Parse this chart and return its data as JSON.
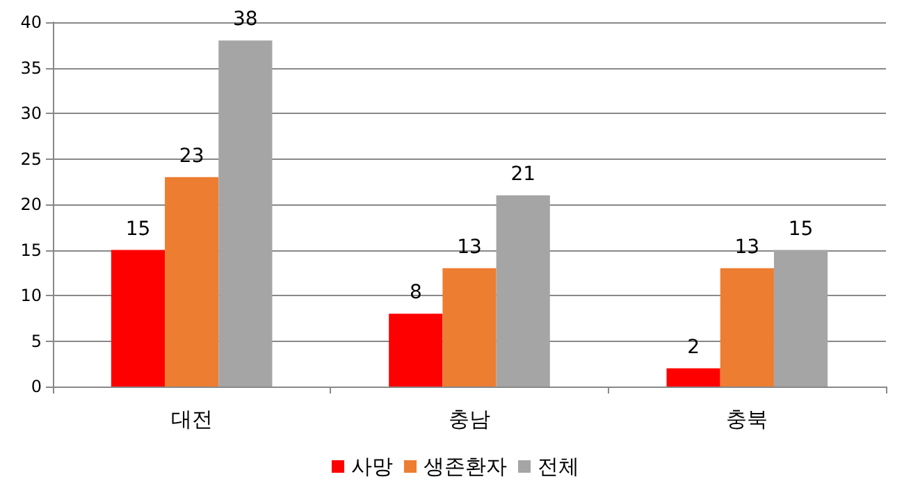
{
  "chart_data": {
    "type": "bar",
    "categories": [
      "대전",
      "충남",
      "충북"
    ],
    "series": [
      {
        "name": "사망",
        "color": "#ff0000",
        "values": [
          15,
          8,
          2
        ]
      },
      {
        "name": "생존환자",
        "color": "#ed7d31",
        "values": [
          23,
          13,
          13
        ]
      },
      {
        "name": "전체",
        "color": "#a5a5a5",
        "values": [
          38,
          21,
          15
        ]
      }
    ],
    "ylim": [
      0,
      40
    ],
    "yticks": [
      0,
      5,
      10,
      15,
      20,
      25,
      30,
      35,
      40
    ],
    "grid": "y",
    "legend": "bottom",
    "data_labels": true
  }
}
